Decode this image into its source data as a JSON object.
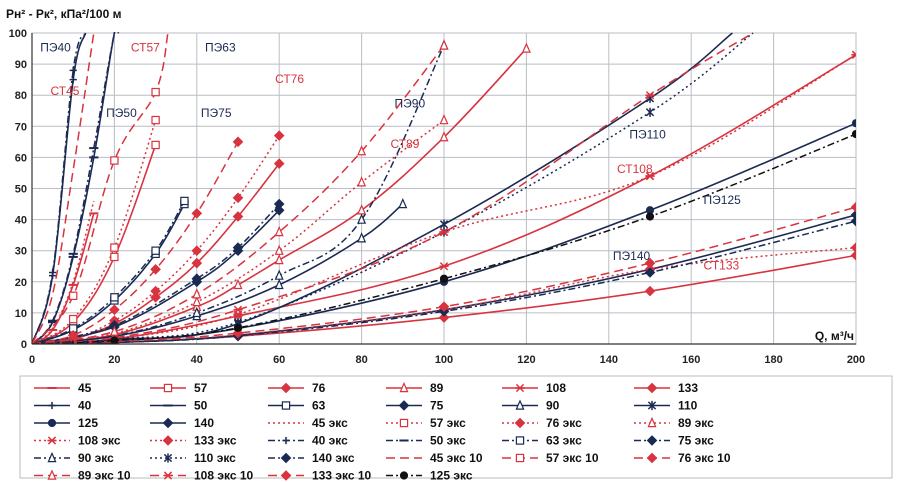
{
  "chart_data": {
    "type": "line",
    "ylabel": "Pн² - Pк², кПа²/100 м",
    "xlabel": "Q, м³/ч",
    "xlim": [
      0,
      200
    ],
    "ylim": [
      0,
      100
    ],
    "x_ticks": [
      0,
      20,
      40,
      60,
      80,
      100,
      120,
      140,
      160,
      180,
      200
    ],
    "y_ticks": [
      0,
      10,
      20,
      30,
      40,
      50,
      60,
      70,
      80,
      90,
      100
    ],
    "grid": true,
    "legend_position": "bottom",
    "colors": {
      "red": "#d8333e",
      "navy": "#1b2a52",
      "black": "#111111"
    },
    "annotations": [
      {
        "text": "ПЭ40",
        "x": 2,
        "y": 94,
        "color": "navy"
      },
      {
        "text": "СТ45",
        "x": 4.5,
        "y": 80,
        "color": "red"
      },
      {
        "text": "ПЭ50",
        "x": 18,
        "y": 73,
        "color": "navy"
      },
      {
        "text": "СТ57",
        "x": 24,
        "y": 94,
        "color": "red"
      },
      {
        "text": "ПЭ63",
        "x": 42,
        "y": 94,
        "color": "navy"
      },
      {
        "text": "ПЭ75",
        "x": 41,
        "y": 73,
        "color": "navy"
      },
      {
        "text": "СТ76",
        "x": 59,
        "y": 84,
        "color": "red"
      },
      {
        "text": "ПЭ90",
        "x": 88,
        "y": 76,
        "color": "navy"
      },
      {
        "text": "СТ89",
        "x": 87,
        "y": 63,
        "color": "red"
      },
      {
        "text": "ПЭ110",
        "x": 145,
        "y": 66,
        "color": "navy"
      },
      {
        "text": "СТ108",
        "x": 142,
        "y": 55,
        "color": "red"
      },
      {
        "text": "ПЭ125",
        "x": 163,
        "y": 45,
        "color": "navy"
      },
      {
        "text": "ПЭ140",
        "x": 141,
        "y": 27,
        "color": "navy"
      },
      {
        "text": "СТ133",
        "x": 163,
        "y": 24,
        "color": "red"
      }
    ],
    "series": [
      {
        "name": "45",
        "color": "red",
        "dash": "solid",
        "marker": "hbar",
        "x": [
          0,
          5,
          10,
          15
        ],
        "y": [
          0,
          4.5,
          19,
          42
        ]
      },
      {
        "name": "57",
        "color": "red",
        "dash": "solid",
        "marker": "square",
        "x": [
          0,
          10,
          20,
          30
        ],
        "y": [
          0,
          7,
          28,
          64
        ]
      },
      {
        "name": "76",
        "color": "red",
        "dash": "solid",
        "marker": "diamond",
        "x": [
          0,
          10,
          20,
          30,
          40,
          50,
          60
        ],
        "y": [
          0,
          1.6,
          6.5,
          15,
          26,
          41,
          58
        ]
      },
      {
        "name": "89",
        "color": "red",
        "dash": "solid",
        "marker": "triangle",
        "x": [
          0,
          20,
          40,
          50,
          60,
          80,
          100,
          120
        ],
        "y": [
          0,
          3,
          12,
          19,
          27,
          43,
          66.5,
          95
        ]
      },
      {
        "name": "108",
        "color": "red",
        "dash": "solid",
        "marker": "star",
        "x": [
          0,
          20,
          50,
          100,
          150,
          200
        ],
        "y": [
          0,
          1.6,
          9,
          25,
          54,
          93
        ]
      },
      {
        "name": "133",
        "color": "red",
        "dash": "solid",
        "marker": "diamond",
        "x": [
          0,
          20,
          50,
          100,
          150,
          200
        ],
        "y": [
          0,
          0.5,
          2.5,
          8.5,
          17,
          28.5
        ]
      },
      {
        "name": "40",
        "color": "navy",
        "dash": "solid",
        "marker": "plus",
        "x": [
          0,
          5,
          10,
          13
        ],
        "y": [
          0,
          22,
          85,
          100
        ]
      },
      {
        "name": "50",
        "color": "navy",
        "dash": "solid",
        "marker": "hbar",
        "x": [
          0,
          5,
          10,
          15,
          20,
          21
        ],
        "y": [
          0,
          7,
          28,
          60,
          100,
          100
        ]
      },
      {
        "name": "63",
        "color": "navy",
        "dash": "solid",
        "marker": "square",
        "x": [
          0,
          10,
          20,
          30,
          37
        ],
        "y": [
          0,
          4.5,
          14,
          29,
          45
        ]
      },
      {
        "name": "75",
        "color": "navy",
        "dash": "solid",
        "marker": "diamond",
        "x": [
          0,
          20,
          40,
          50,
          60
        ],
        "y": [
          0,
          5.5,
          20,
          30,
          43
        ]
      },
      {
        "name": "90",
        "color": "navy",
        "dash": "solid",
        "marker": "triangle",
        "x": [
          0,
          20,
          40,
          60,
          80,
          90
        ],
        "y": [
          0,
          2.5,
          9,
          19,
          34,
          45
        ]
      },
      {
        "name": "110",
        "color": "navy",
        "dash": "solid",
        "marker": "xstar",
        "x": [
          0,
          20,
          50,
          100,
          150,
          170
        ],
        "y": [
          0,
          1.5,
          6.5,
          38.5,
          79,
          100
        ]
      },
      {
        "name": "125",
        "color": "navy",
        "dash": "solid",
        "marker": "circle",
        "x": [
          0,
          20,
          50,
          100,
          150,
          200
        ],
        "y": [
          0,
          1,
          5,
          20,
          43,
          71
        ]
      },
      {
        "name": "140",
        "color": "navy",
        "dash": "solid",
        "marker": "diamond",
        "x": [
          0,
          20,
          50,
          100,
          150,
          200
        ],
        "y": [
          0,
          0.5,
          2.8,
          11,
          24,
          41.5
        ]
      },
      {
        "name": "45 экс",
        "color": "red",
        "dash": "dotted",
        "marker": "none",
        "x": [
          0,
          5,
          10,
          15
        ],
        "y": [
          0,
          5,
          20,
          46
        ]
      },
      {
        "name": "57 экс",
        "color": "red",
        "dash": "dotted",
        "marker": "square",
        "x": [
          0,
          10,
          20,
          30
        ],
        "y": [
          0,
          8,
          31,
          72
        ]
      },
      {
        "name": "76 экс",
        "color": "red",
        "dash": "dotted",
        "marker": "diamond",
        "x": [
          0,
          10,
          20,
          30,
          40,
          50,
          60
        ],
        "y": [
          0,
          1.8,
          7.5,
          17,
          30,
          47,
          67
        ]
      },
      {
        "name": "89 экс",
        "color": "red",
        "dash": "dotted",
        "marker": "triangle",
        "x": [
          0,
          20,
          40,
          60,
          80,
          100
        ],
        "y": [
          0,
          3.4,
          13.5,
          30,
          52,
          72
        ]
      },
      {
        "name": "108 экс",
        "color": "red",
        "dash": "dotted",
        "marker": "star",
        "x": [
          0,
          20,
          50,
          100,
          150,
          200
        ],
        "y": [
          0,
          1.7,
          9.5,
          36,
          54,
          93
        ]
      },
      {
        "name": "133 экс",
        "color": "red",
        "dash": "dotted",
        "marker": "diamond",
        "x": [
          0,
          20,
          50,
          100,
          150,
          200
        ],
        "y": [
          0,
          0.6,
          2.9,
          11,
          24,
          31
        ]
      },
      {
        "name": "40 экс",
        "color": "navy",
        "dash": "dashdot",
        "marker": "plus",
        "x": [
          0,
          5,
          10,
          13
        ],
        "y": [
          0,
          23,
          88,
          100
        ]
      },
      {
        "name": "50 экс",
        "color": "navy",
        "dash": "dashdot",
        "marker": "hbar",
        "x": [
          0,
          5,
          10,
          15,
          20,
          21
        ],
        "y": [
          0,
          7.5,
          29,
          63,
          100,
          100
        ]
      },
      {
        "name": "63 экс",
        "color": "navy",
        "dash": "dashdot",
        "marker": "square",
        "x": [
          0,
          10,
          20,
          30,
          37
        ],
        "y": [
          0,
          5,
          15,
          30,
          46
        ]
      },
      {
        "name": "75 экс",
        "color": "navy",
        "dash": "dashdot",
        "marker": "diamond",
        "x": [
          0,
          20,
          40,
          50,
          60
        ],
        "y": [
          0,
          6,
          21,
          31,
          45
        ]
      },
      {
        "name": "90 экс",
        "color": "navy",
        "dash": "dashdot",
        "marker": "triangle",
        "x": [
          0,
          20,
          40,
          60,
          80,
          100
        ],
        "y": [
          0,
          2.6,
          10,
          22,
          40,
          96
        ]
      },
      {
        "name": "110 экс",
        "color": "navy",
        "dash": "dotted",
        "marker": "xstar",
        "x": [
          0,
          20,
          50,
          100,
          150,
          175
        ],
        "y": [
          0,
          1.6,
          7,
          36,
          74.5,
          100
        ]
      },
      {
        "name": "140 экс",
        "color": "navy",
        "dash": "dashdot",
        "marker": "diamond",
        "x": [
          0,
          20,
          50,
          100,
          150,
          200
        ],
        "y": [
          0,
          0.5,
          2.6,
          10.5,
          23,
          39.5
        ]
      },
      {
        "name": "45 экс 10",
        "color": "red",
        "dash": "dashed",
        "marker": "none",
        "x": [
          0,
          5,
          10,
          15
        ],
        "y": [
          0,
          16,
          56,
          100
        ]
      },
      {
        "name": "57 экс 10",
        "color": "red",
        "dash": "dashed",
        "marker": "square",
        "x": [
          0,
          10,
          20,
          30,
          33
        ],
        "y": [
          0,
          15.5,
          59,
          81,
          100
        ]
      },
      {
        "name": "76 экс 10",
        "color": "red",
        "dash": "dashed",
        "marker": "diamond",
        "x": [
          0,
          10,
          20,
          30,
          40,
          50
        ],
        "y": [
          0,
          2.8,
          11,
          24,
          42,
          65
        ]
      },
      {
        "name": "89 экс 10",
        "color": "red",
        "dash": "dashed",
        "marker": "triangle",
        "x": [
          0,
          20,
          40,
          60,
          80,
          100
        ],
        "y": [
          0,
          4,
          16,
          36,
          62,
          96
        ]
      },
      {
        "name": "108 экс 10",
        "color": "red",
        "dash": "dashed",
        "marker": "star",
        "x": [
          0,
          20,
          50,
          100,
          150,
          175
        ],
        "y": [
          0,
          2,
          11,
          36,
          80,
          100
        ]
      },
      {
        "name": "133 экс 10",
        "color": "red",
        "dash": "dashed",
        "marker": "diamond",
        "x": [
          0,
          20,
          50,
          100,
          150,
          200
        ],
        "y": [
          0,
          0.8,
          3.5,
          12,
          26,
          44
        ]
      },
      {
        "name": "125 экс",
        "color": "black",
        "dash": "dashdot",
        "marker": "circle",
        "x": [
          0,
          20,
          50,
          100,
          150,
          200
        ],
        "y": [
          0,
          1.1,
          5.2,
          21,
          41,
          67.5
        ]
      }
    ]
  }
}
